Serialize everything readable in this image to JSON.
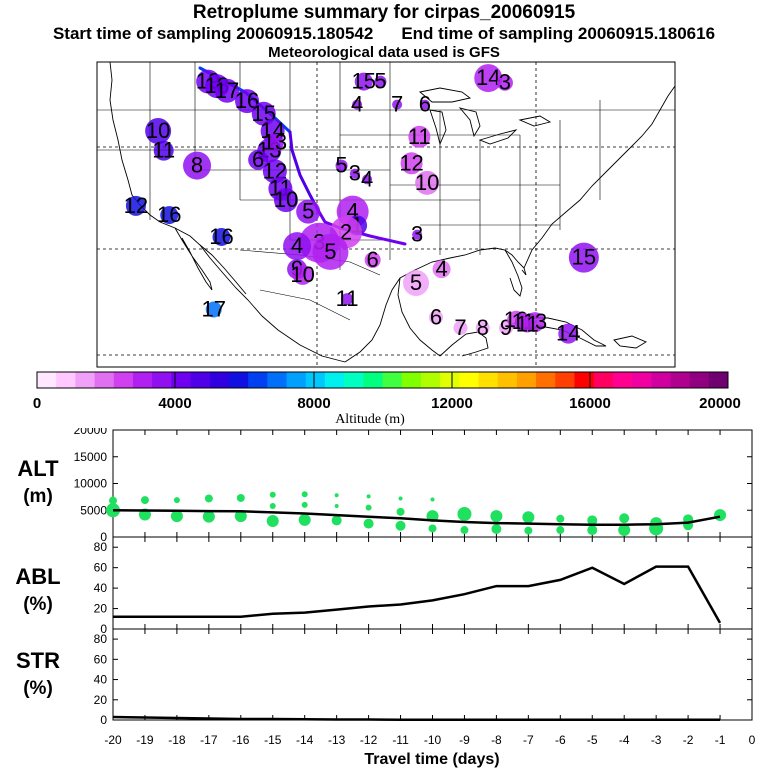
{
  "header": {
    "title": "Retroplume summary for cirpas_20060915",
    "start_label": "Start time of sampling 20060915.180542",
    "end_label": "End time of sampling 20060915.180616",
    "met_label": "Meteorological data used is GFS"
  },
  "colorbar": {
    "tick_labels": [
      "0",
      "4000",
      "8000",
      "12000",
      "16000",
      "20000"
    ],
    "title": "Altitude (m)",
    "colors": [
      "#ffe8ff",
      "#ffc8ff",
      "#f0a0f8",
      "#e070f0",
      "#d040f0",
      "#b020f0",
      "#9010f0",
      "#7000f0",
      "#5000e8",
      "#3000e0",
      "#1010e0",
      "#0040f0",
      "#0070f8",
      "#00a0ff",
      "#00c8ff",
      "#00f0f0",
      "#00ffc0",
      "#00ff80",
      "#40ff40",
      "#80ff00",
      "#b0ff00",
      "#e0ff00",
      "#ffff00",
      "#ffe000",
      "#ffc000",
      "#ffa000",
      "#ff7000",
      "#ff4000",
      "#ff0000",
      "#ff0060",
      "#ff0090",
      "#f000a0",
      "#d000a0",
      "#b00090",
      "#900080",
      "#700070"
    ]
  },
  "map_markers": [
    {
      "label": "19",
      "lon": -112.0,
      "lat": 48.3,
      "size": 12,
      "color": "#7000f0"
    },
    {
      "label": "18",
      "lon": -111.2,
      "lat": 47.9,
      "size": 12,
      "color": "#7000f0"
    },
    {
      "label": "17",
      "lon": -110.3,
      "lat": 47.5,
      "size": 12,
      "color": "#7000f0"
    },
    {
      "label": "16",
      "lon": -108.5,
      "lat": 46.6,
      "size": 12,
      "color": "#7000f0"
    },
    {
      "label": "15",
      "lon": -107.0,
      "lat": 45.5,
      "size": 12,
      "color": "#7000f0"
    },
    {
      "label": "14",
      "lon": -106.2,
      "lat": 44.0,
      "size": 12,
      "color": "#7000f0"
    },
    {
      "label": "13",
      "lon": -106.5,
      "lat": 42.3,
      "size": 12,
      "color": "#7000f0"
    },
    {
      "label": "12",
      "lon": -106.0,
      "lat": 40.5,
      "size": 12,
      "color": "#7000f0"
    },
    {
      "label": "11",
      "lon": -105.5,
      "lat": 39.0,
      "size": 12,
      "color": "#7000f0"
    },
    {
      "label": "10",
      "lon": -105.0,
      "lat": 38.0,
      "size": 12,
      "color": "#7000f0"
    },
    {
      "label": "10",
      "lon": -116.5,
      "lat": 44.0,
      "size": 13,
      "color": "#5000e8"
    },
    {
      "label": "11",
      "lon": -116.0,
      "lat": 42.3,
      "size": 10,
      "color": "#5000e8"
    },
    {
      "label": "8",
      "lon": -113.0,
      "lat": 41.0,
      "size": 14,
      "color": "#9010f0"
    },
    {
      "label": "6",
      "lon": -107.5,
      "lat": 41.5,
      "size": 10,
      "color": "#7000f0"
    },
    {
      "label": "13",
      "lon": -106.0,
      "lat": 43.0,
      "size": 9,
      "color": "#9010f0"
    },
    {
      "label": "12",
      "lon": -118.5,
      "lat": 37.5,
      "size": 10,
      "color": "#1010e0"
    },
    {
      "label": "16",
      "lon": -115.5,
      "lat": 36.7,
      "size": 9,
      "color": "#1010e0"
    },
    {
      "label": "16",
      "lon": -110.8,
      "lat": 34.8,
      "size": 9,
      "color": "#1010e0"
    },
    {
      "label": "17",
      "lon": -111.5,
      "lat": 28.5,
      "size": 8,
      "color": "#0070f8"
    },
    {
      "label": "15",
      "lon": -98.0,
      "lat": 48.3,
      "size": 9,
      "color": "#9010f0"
    },
    {
      "label": "5",
      "lon": -96.5,
      "lat": 48.3,
      "size": 6,
      "color": "#9010f0"
    },
    {
      "label": "14",
      "lon": -86.8,
      "lat": 48.6,
      "size": 14,
      "color": "#b020f0"
    },
    {
      "label": "3",
      "lon": -85.3,
      "lat": 48.2,
      "size": 8,
      "color": "#b020f0"
    },
    {
      "label": "4",
      "lon": -98.6,
      "lat": 46.3,
      "size": 5,
      "color": "#9010f0"
    },
    {
      "label": "7",
      "lon": -95.0,
      "lat": 46.3,
      "size": 5,
      "color": "#9010f0"
    },
    {
      "label": "6",
      "lon": -92.5,
      "lat": 46.3,
      "size": 5,
      "color": "#9010f0"
    },
    {
      "label": "11",
      "lon": -93.0,
      "lat": 43.5,
      "size": 11,
      "color": "#d040f0"
    },
    {
      "label": "12",
      "lon": -93.7,
      "lat": 41.2,
      "size": 11,
      "color": "#d040f0"
    },
    {
      "label": "10",
      "lon": -92.3,
      "lat": 39.5,
      "size": 12,
      "color": "#e070f0"
    },
    {
      "label": "3",
      "lon": -98.8,
      "lat": 40.3,
      "size": 5,
      "color": "#9010f0"
    },
    {
      "label": "4",
      "lon": -97.7,
      "lat": 39.8,
      "size": 5,
      "color": "#9010f0"
    },
    {
      "label": "5",
      "lon": -100.0,
      "lat": 41.0,
      "size": 6,
      "color": "#9010f0"
    },
    {
      "label": "5",
      "lon": -103.0,
      "lat": 37.0,
      "size": 12,
      "color": "#9010f0"
    },
    {
      "label": "4",
      "lon": -99.0,
      "lat": 37.0,
      "size": 16,
      "color": "#b020f0"
    },
    {
      "label": "1",
      "lon": -98.6,
      "lat": 35.8,
      "size": 10,
      "color": "#5000e8"
    },
    {
      "label": "2",
      "lon": -99.6,
      "lat": 35.2,
      "size": 16,
      "color": "#d040f0"
    },
    {
      "label": "3",
      "lon": -102.0,
      "lat": 34.3,
      "size": 20,
      "color": "#b020f0"
    },
    {
      "label": "5",
      "lon": -101.0,
      "lat": 33.5,
      "size": 18,
      "color": "#b020f0"
    },
    {
      "label": "4",
      "lon": -104.0,
      "lat": 34.0,
      "size": 14,
      "color": "#9010f0"
    },
    {
      "label": "9",
      "lon": -104.0,
      "lat": 32.0,
      "size": 10,
      "color": "#9010f0"
    },
    {
      "label": "10",
      "lon": -103.5,
      "lat": 31.5,
      "size": 10,
      "color": "#b020f0"
    },
    {
      "label": "6",
      "lon": -97.2,
      "lat": 32.8,
      "size": 8,
      "color": "#d040f0"
    },
    {
      "label": "3",
      "lon": -93.2,
      "lat": 35.0,
      "size": 5,
      "color": "#9010f0"
    },
    {
      "label": "5",
      "lon": -93.3,
      "lat": 30.8,
      "size": 13,
      "color": "#f0a0f8"
    },
    {
      "label": "4",
      "lon": -91.0,
      "lat": 32.0,
      "size": 9,
      "color": "#e070f0"
    },
    {
      "label": "11",
      "lon": -99.5,
      "lat": 29.4,
      "size": 6,
      "color": "#9010f0"
    },
    {
      "label": "6",
      "lon": -91.5,
      "lat": 27.8,
      "size": 7,
      "color": "#f0a0f8"
    },
    {
      "label": "7",
      "lon": -89.3,
      "lat": 26.9,
      "size": 7,
      "color": "#f0a0f8"
    },
    {
      "label": "8",
      "lon": -87.3,
      "lat": 26.9,
      "size": 7,
      "color": "#f0a0f8"
    },
    {
      "label": "9",
      "lon": -85.2,
      "lat": 26.9,
      "size": 7,
      "color": "#f0a0f8"
    },
    {
      "label": "10",
      "lon": -84.3,
      "lat": 27.6,
      "size": 9,
      "color": "#d040f0"
    },
    {
      "label": "12",
      "lon": -83.6,
      "lat": 27.4,
      "size": 9,
      "color": "#b020f0"
    },
    {
      "label": "13",
      "lon": -82.6,
      "lat": 27.4,
      "size": 10,
      "color": "#b020f0"
    },
    {
      "label": "11",
      "lon": -83.3,
      "lat": 27.2,
      "size": 8,
      "color": "#b020f0"
    },
    {
      "label": "14",
      "lon": -79.6,
      "lat": 26.4,
      "size": 10,
      "color": "#9010f0"
    },
    {
      "label": "15",
      "lon": -78.2,
      "lat": 33.0,
      "size": 15,
      "color": "#9010f0"
    }
  ],
  "chart_data": [
    {
      "type": "scatter",
      "name": "ALT",
      "ylabel_line1": "ALT",
      "ylabel_line2": "(m)",
      "xlim": [
        -20,
        0
      ],
      "ylim": [
        0,
        20000
      ],
      "yticks": [
        0,
        5000,
        10000,
        15000,
        20000
      ],
      "median_line": {
        "x": [
          -20,
          -19,
          -18,
          -17,
          -16,
          -15,
          -14,
          -13,
          -12,
          -11,
          -10,
          -9,
          -8,
          -7,
          -6,
          -5,
          -4,
          -3,
          -2,
          -1
        ],
        "y": [
          5000,
          4950,
          4900,
          4850,
          4800,
          4600,
          4400,
          4100,
          3800,
          3500,
          3100,
          2800,
          2600,
          2500,
          2400,
          2300,
          2300,
          2400,
          2700,
          3800
        ]
      },
      "points": [
        {
          "x": -20,
          "y": 5000,
          "s": 7
        },
        {
          "x": -20,
          "y": 6800,
          "s": 4
        },
        {
          "x": -19,
          "y": 4200,
          "s": 6
        },
        {
          "x": -19,
          "y": 6900,
          "s": 4
        },
        {
          "x": -18,
          "y": 3900,
          "s": 6
        },
        {
          "x": -18,
          "y": 6900,
          "s": 3
        },
        {
          "x": -17,
          "y": 3800,
          "s": 6
        },
        {
          "x": -17,
          "y": 7200,
          "s": 4
        },
        {
          "x": -16,
          "y": 3900,
          "s": 6
        },
        {
          "x": -16,
          "y": 7300,
          "s": 4
        },
        {
          "x": -15,
          "y": 3000,
          "s": 6
        },
        {
          "x": -15,
          "y": 5800,
          "s": 3
        },
        {
          "x": -15,
          "y": 7900,
          "s": 3
        },
        {
          "x": -14,
          "y": 3200,
          "s": 6
        },
        {
          "x": -14,
          "y": 6000,
          "s": 3
        },
        {
          "x": -14,
          "y": 8000,
          "s": 3
        },
        {
          "x": -13,
          "y": 3100,
          "s": 5
        },
        {
          "x": -13,
          "y": 5800,
          "s": 2
        },
        {
          "x": -13,
          "y": 7800,
          "s": 2
        },
        {
          "x": -12,
          "y": 2500,
          "s": 5
        },
        {
          "x": -12,
          "y": 5500,
          "s": 3
        },
        {
          "x": -12,
          "y": 7600,
          "s": 2
        },
        {
          "x": -11,
          "y": 2100,
          "s": 5
        },
        {
          "x": -11,
          "y": 4700,
          "s": 4
        },
        {
          "x": -11,
          "y": 7200,
          "s": 2
        },
        {
          "x": -10,
          "y": 1600,
          "s": 4
        },
        {
          "x": -10,
          "y": 3900,
          "s": 6
        },
        {
          "x": -10,
          "y": 7000,
          "s": 2
        },
        {
          "x": -9,
          "y": 1300,
          "s": 4
        },
        {
          "x": -9,
          "y": 4300,
          "s": 7
        },
        {
          "x": -8,
          "y": 1500,
          "s": 5
        },
        {
          "x": -8,
          "y": 3900,
          "s": 6
        },
        {
          "x": -7,
          "y": 1200,
          "s": 4
        },
        {
          "x": -7,
          "y": 3700,
          "s": 6
        },
        {
          "x": -6,
          "y": 1300,
          "s": 4
        },
        {
          "x": -6,
          "y": 3400,
          "s": 4
        },
        {
          "x": -5,
          "y": 1300,
          "s": 5
        },
        {
          "x": -5,
          "y": 3100,
          "s": 5
        },
        {
          "x": -4,
          "y": 1300,
          "s": 6
        },
        {
          "x": -4,
          "y": 3500,
          "s": 5
        },
        {
          "x": -3,
          "y": 1600,
          "s": 7
        },
        {
          "x": -3,
          "y": 2600,
          "s": 6
        },
        {
          "x": -2,
          "y": 2200,
          "s": 5
        },
        {
          "x": -2,
          "y": 3300,
          "s": 5
        },
        {
          "x": -1,
          "y": 4100,
          "s": 6
        }
      ]
    },
    {
      "type": "line",
      "name": "ABL",
      "ylabel_line1": "ABL",
      "ylabel_line2": "(%)",
      "xlim": [
        -20,
        0
      ],
      "ylim": [
        0,
        90
      ],
      "yticks": [
        0,
        20,
        40,
        60,
        80
      ],
      "x": [
        -20,
        -19,
        -18,
        -17,
        -16,
        -15,
        -14,
        -13,
        -12,
        -11,
        -10,
        -9,
        -8,
        -7,
        -6,
        -5,
        -4,
        -3,
        -2,
        -1
      ],
      "y": [
        12,
        12,
        12,
        12,
        12,
        15,
        16,
        19,
        22,
        24,
        28,
        34,
        42,
        42,
        48,
        60,
        44,
        61,
        61,
        6
      ]
    },
    {
      "type": "line",
      "name": "STR",
      "ylabel_line1": "STR",
      "ylabel_line2": "(%)",
      "xlim": [
        -20,
        0
      ],
      "ylim": [
        0,
        90
      ],
      "yticks": [
        0,
        20,
        40,
        60,
        80
      ],
      "x": [
        -20,
        -19,
        -18,
        -17,
        -16,
        -15,
        -14,
        -13,
        -12,
        -11,
        -10,
        -9,
        -8,
        -7,
        -6,
        -5,
        -4,
        -3,
        -2,
        -1
      ],
      "y": [
        3,
        2.5,
        2,
        1.5,
        1,
        1,
        0.8,
        0.5,
        0.5,
        0.3,
        0.3,
        0.2,
        0.2,
        0.2,
        0.2,
        0.2,
        0.2,
        0.2,
        0.2,
        0.2
      ],
      "xticks": [
        "-20",
        "-19",
        "-18",
        "-17",
        "-16",
        "-15",
        "-14",
        "-13",
        "-12",
        "-11",
        "-10",
        "-9",
        "-8",
        "-7",
        "-6",
        "-5",
        "-4",
        "-3",
        "-2",
        "-1",
        "0"
      ],
      "xlabel": "Travel time (days)"
    }
  ]
}
